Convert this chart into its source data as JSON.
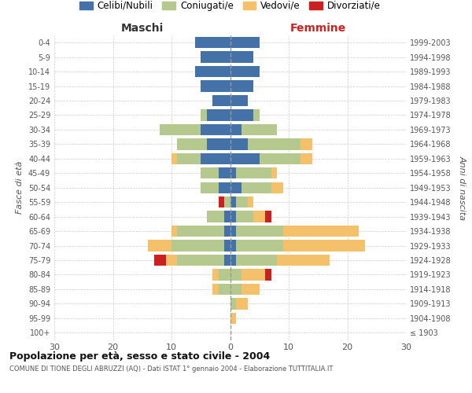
{
  "age_groups": [
    "100+",
    "95-99",
    "90-94",
    "85-89",
    "80-84",
    "75-79",
    "70-74",
    "65-69",
    "60-64",
    "55-59",
    "50-54",
    "45-49",
    "40-44",
    "35-39",
    "30-34",
    "25-29",
    "20-24",
    "15-19",
    "10-14",
    "5-9",
    "0-4"
  ],
  "birth_years": [
    "≤ 1903",
    "1904-1908",
    "1909-1913",
    "1914-1918",
    "1919-1923",
    "1924-1928",
    "1929-1933",
    "1934-1938",
    "1939-1943",
    "1944-1948",
    "1949-1953",
    "1954-1958",
    "1959-1963",
    "1964-1968",
    "1969-1973",
    "1974-1978",
    "1979-1983",
    "1984-1988",
    "1989-1993",
    "1994-1998",
    "1999-2003"
  ],
  "colors": {
    "celibi": "#4472a8",
    "coniugati": "#b5c98e",
    "vedovi": "#f5c06a",
    "divorziati": "#cc1f1f"
  },
  "maschi": {
    "celibi": [
      0,
      0,
      0,
      0,
      0,
      1,
      1,
      1,
      1,
      0,
      2,
      2,
      5,
      4,
      5,
      4,
      3,
      5,
      6,
      5,
      6
    ],
    "coniugati": [
      0,
      0,
      0,
      2,
      2,
      8,
      9,
      8,
      3,
      1,
      3,
      3,
      4,
      5,
      7,
      1,
      0,
      0,
      0,
      0,
      0
    ],
    "vedovi": [
      0,
      0,
      0,
      1,
      1,
      2,
      4,
      1,
      0,
      0,
      0,
      0,
      1,
      0,
      0,
      0,
      0,
      0,
      0,
      0,
      0
    ],
    "divorziati": [
      0,
      0,
      0,
      0,
      0,
      2,
      0,
      0,
      0,
      1,
      0,
      0,
      0,
      0,
      0,
      0,
      0,
      0,
      0,
      0,
      0
    ]
  },
  "femmine": {
    "nubili": [
      0,
      0,
      0,
      0,
      0,
      1,
      1,
      1,
      1,
      1,
      2,
      1,
      5,
      3,
      2,
      4,
      3,
      4,
      5,
      4,
      5
    ],
    "coniugate": [
      0,
      0,
      1,
      2,
      2,
      7,
      8,
      8,
      3,
      2,
      5,
      6,
      7,
      9,
      6,
      1,
      0,
      0,
      0,
      0,
      0
    ],
    "vedove": [
      0,
      1,
      2,
      3,
      4,
      9,
      14,
      13,
      2,
      1,
      2,
      1,
      2,
      2,
      0,
      0,
      0,
      0,
      0,
      0,
      0
    ],
    "divorziate": [
      0,
      0,
      0,
      0,
      1,
      0,
      0,
      0,
      1,
      0,
      0,
      0,
      0,
      0,
      0,
      0,
      0,
      0,
      0,
      0,
      0
    ]
  },
  "xlim": 30,
  "title": "Popolazione per età, sesso e stato civile - 2004",
  "subtitle": "COMUNE DI TIONE DEGLI ABRUZZI (AQ) - Dati ISTAT 1° gennaio 2004 - Elaborazione TUTTITALIA.IT",
  "ylabel_left": "Fasce di età",
  "ylabel_right": "Anni di nascita",
  "xlabel_left": "Maschi",
  "xlabel_right": "Femmine",
  "legend_labels": [
    "Celibi/Nubili",
    "Coniugati/e",
    "Vedovi/e",
    "Divorziati/e"
  ],
  "bg_color": "#ffffff",
  "grid_color": "#cccccc",
  "text_color": "#555555"
}
